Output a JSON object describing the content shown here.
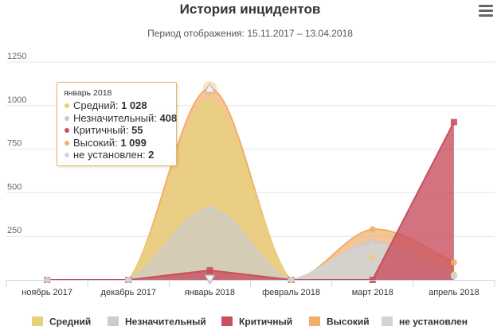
{
  "chart_data": {
    "type": "area",
    "title": "История инцидентов",
    "subtitle": "Период отображения: 15.11.2017 – 13.04.2018",
    "categories": [
      "ноябрь 2017",
      "декабрь 2017",
      "январь 2018",
      "февраль 2018",
      "март 2018",
      "апрель 2018"
    ],
    "ylim": [
      0,
      1250
    ],
    "yticks": [
      250,
      500,
      750,
      1000,
      1250
    ],
    "grid": true,
    "legend_position": "bottom",
    "series": [
      {
        "name": "Средний",
        "color": "#e6d17a",
        "curve": "spline",
        "values": [
          0,
          0,
          1028,
          0,
          130,
          30
        ]
      },
      {
        "name": "Незначительный",
        "color": "#cccccc",
        "curve": "spline",
        "values": [
          0,
          0,
          408,
          0,
          220,
          20
        ]
      },
      {
        "name": "Критичный",
        "color": "#c8505f",
        "curve": "linear",
        "values": [
          0,
          0,
          55,
          0,
          0,
          905
        ]
      },
      {
        "name": "Высокий",
        "color": "#f0ae6a",
        "curve": "spline",
        "values": [
          0,
          0,
          1099,
          0,
          290,
          100
        ]
      },
      {
        "name": "не установлен",
        "color": "#d4d4d4",
        "curve": "spline",
        "values": [
          0,
          0,
          2,
          0,
          200,
          25
        ]
      }
    ],
    "tooltip": {
      "header": "январь 2018",
      "rows": [
        {
          "name": "Средний",
          "value": "1 028"
        },
        {
          "name": "Незначительный",
          "value": "408"
        },
        {
          "name": "Критичный",
          "value": "55"
        },
        {
          "name": "Высокий",
          "value": "1 099"
        },
        {
          "name": "не установлен",
          "value": "2"
        }
      ]
    }
  }
}
